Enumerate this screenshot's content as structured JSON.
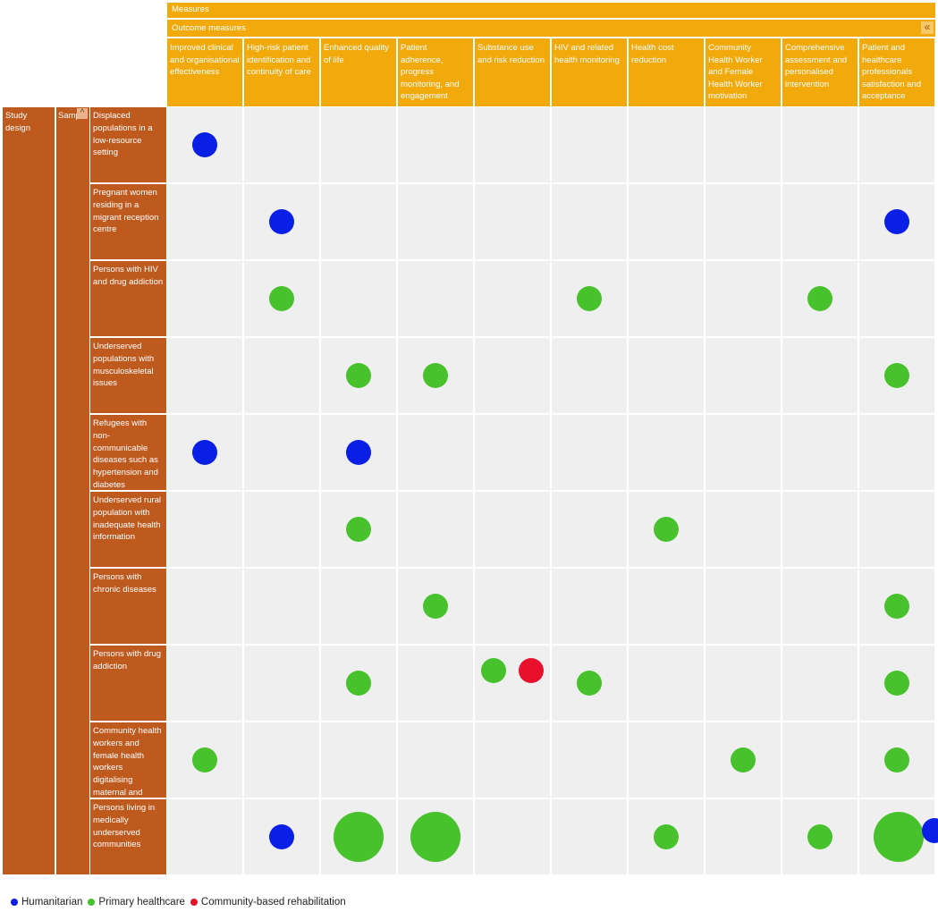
{
  "header": {
    "measures_label": "Measures",
    "outcome_label": "Outcome measures",
    "collapse_icon": "double-chevron-left-icon"
  },
  "side": {
    "study_design_label": "Study design",
    "sample_label": "Sample",
    "sort_icon": "chevron-up-icon"
  },
  "colors": {
    "header": "#f2a90c",
    "side": "#bf5a1f",
    "cell": "#efefef",
    "Humanitarian": "#0a1fe6",
    "Primary healthcare": "#48c22c",
    "Community-based rehabilitation": "#e8102c"
  },
  "legend": [
    {
      "label": "Humanitarian",
      "color": "#0a1fe6"
    },
    {
      "label": "Primary healthcare",
      "color": "#48c22c"
    },
    {
      "label": "Community-based rehabilitation",
      "color": "#e8102c"
    }
  ],
  "chart_data": {
    "type": "scatter",
    "columns": [
      "Improved clinical and organisational effectiveness",
      "High-risk patient identification and continuity of care",
      "Enhanced quality of life",
      "Patient adherence, progress monitoring, and engagement",
      "Substance use and risk reduction",
      "HIV and related health monitoring",
      "Health cost reduction",
      "Community Health Worker and Female Health Worker motivation",
      "Comprehensive assessment and personalised intervention",
      "Patient and healthcare professionals satisfaction and acceptance"
    ],
    "rows": [
      "Displaced populations in a low-resource setting",
      "Pregnant women residing in a migrant reception centre",
      "Persons with HIV and drug addiction",
      "Underserved populations with musculoskeletal issues",
      "Refugees with non-communicable diseases such as hypertension and diabetes",
      "Underserved rural population with inadequate health information",
      "Persons with chronic diseases",
      "Persons with drug addiction",
      "Community health workers and female health workers digitalising maternal and childcare services in remote areas",
      "Persons living in medically underserved communities"
    ],
    "bubbles": [
      {
        "row": 0,
        "col": 0,
        "category": "Humanitarian",
        "count": 1
      },
      {
        "row": 1,
        "col": 1,
        "category": "Humanitarian",
        "count": 1
      },
      {
        "row": 1,
        "col": 9,
        "category": "Humanitarian",
        "count": 1
      },
      {
        "row": 2,
        "col": 1,
        "category": "Primary healthcare",
        "count": 1
      },
      {
        "row": 2,
        "col": 5,
        "category": "Primary healthcare",
        "count": 1
      },
      {
        "row": 2,
        "col": 8,
        "category": "Primary healthcare",
        "count": 1
      },
      {
        "row": 3,
        "col": 2,
        "category": "Primary healthcare",
        "count": 1
      },
      {
        "row": 3,
        "col": 3,
        "category": "Primary healthcare",
        "count": 1
      },
      {
        "row": 3,
        "col": 9,
        "category": "Primary healthcare",
        "count": 1
      },
      {
        "row": 4,
        "col": 0,
        "category": "Humanitarian",
        "count": 1
      },
      {
        "row": 4,
        "col": 2,
        "category": "Humanitarian",
        "count": 1
      },
      {
        "row": 5,
        "col": 2,
        "category": "Primary healthcare",
        "count": 1
      },
      {
        "row": 5,
        "col": 6,
        "category": "Primary healthcare",
        "count": 1
      },
      {
        "row": 6,
        "col": 3,
        "category": "Primary healthcare",
        "count": 1
      },
      {
        "row": 6,
        "col": 9,
        "category": "Primary healthcare",
        "count": 1
      },
      {
        "row": 7,
        "col": 2,
        "category": "Primary healthcare",
        "count": 1
      },
      {
        "row": 7,
        "col": 4,
        "category": "Primary healthcare",
        "count": 1
      },
      {
        "row": 7,
        "col": 4,
        "category": "Community-based rehabilitation",
        "count": 1
      },
      {
        "row": 7,
        "col": 5,
        "category": "Primary healthcare",
        "count": 1
      },
      {
        "row": 7,
        "col": 9,
        "category": "Primary healthcare",
        "count": 1
      },
      {
        "row": 8,
        "col": 0,
        "category": "Primary healthcare",
        "count": 1
      },
      {
        "row": 8,
        "col": 7,
        "category": "Primary healthcare",
        "count": 1
      },
      {
        "row": 8,
        "col": 9,
        "category": "Primary healthcare",
        "count": 1
      },
      {
        "row": 9,
        "col": 1,
        "category": "Humanitarian",
        "count": 1
      },
      {
        "row": 9,
        "col": 2,
        "category": "Primary healthcare",
        "count": 4
      },
      {
        "row": 9,
        "col": 3,
        "category": "Primary healthcare",
        "count": 4
      },
      {
        "row": 9,
        "col": 6,
        "category": "Primary healthcare",
        "count": 1
      },
      {
        "row": 9,
        "col": 8,
        "category": "Primary healthcare",
        "count": 1
      },
      {
        "row": 9,
        "col": 9,
        "category": "Primary healthcare",
        "count": 4
      },
      {
        "row": 9,
        "col": 9,
        "category": "Humanitarian",
        "count": 1
      }
    ],
    "legend_position": "bottom-left"
  }
}
